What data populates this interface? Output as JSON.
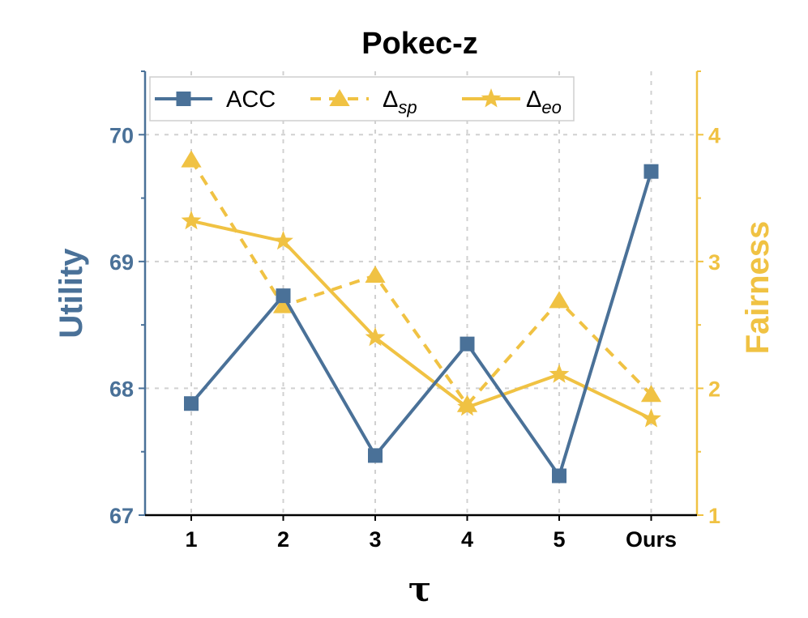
{
  "colors": {
    "utility": "#4a7198",
    "fairness": "#f0c243",
    "grid": "#d0d0d0",
    "text": "#000000"
  },
  "chart_data": {
    "type": "line",
    "title": "Pokec-z",
    "xlabel": "τ",
    "ylabel_left": "Utility",
    "ylabel_right": "Fairness",
    "categories": [
      "1",
      "2",
      "3",
      "4",
      "5",
      "Ours"
    ],
    "y_left": {
      "lim": [
        67,
        70.5
      ],
      "ticks": [
        67,
        68,
        69,
        70
      ]
    },
    "y_right": {
      "lim": [
        1,
        4.5
      ],
      "ticks": [
        1,
        2,
        3,
        4
      ]
    },
    "grid": true,
    "legend_position": "top",
    "series": [
      {
        "name": "ACC",
        "axis": "left",
        "marker": "square",
        "dash": false,
        "color": "#4a7198",
        "values": [
          67.88,
          68.73,
          67.47,
          68.35,
          67.31,
          69.71
        ]
      },
      {
        "name": "Δ",
        "sub": "sp",
        "axis": "right",
        "marker": "triangle",
        "dash": true,
        "color": "#f0c243",
        "values": [
          3.8,
          2.65,
          2.89,
          1.87,
          2.69,
          1.95
        ]
      },
      {
        "name": "Δ",
        "sub": "eo",
        "axis": "right",
        "marker": "star",
        "dash": false,
        "color": "#f0c243",
        "values": [
          3.32,
          3.16,
          2.4,
          1.85,
          2.11,
          1.76
        ]
      }
    ]
  }
}
